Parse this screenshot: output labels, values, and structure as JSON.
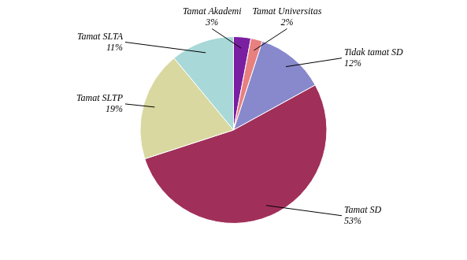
{
  "chart_data": {
    "type": "pie",
    "categories": [
      "Tidak tamat SD",
      "Tamat SD",
      "Tamat SLTP",
      "Tamat SLTA",
      "Tamat Akademi",
      "Tamat Universitas"
    ],
    "values": [
      12,
      53,
      19,
      11,
      3,
      2
    ],
    "value_labels": [
      "12%",
      "53%",
      "19%",
      "11%",
      "3%",
      "2%"
    ],
    "data_labels": true,
    "colors": [
      "#8888cc",
      "#a0305a",
      "#d8d8a0",
      "#a8d8d8",
      "#7b1fa2",
      "#e88080"
    ]
  }
}
